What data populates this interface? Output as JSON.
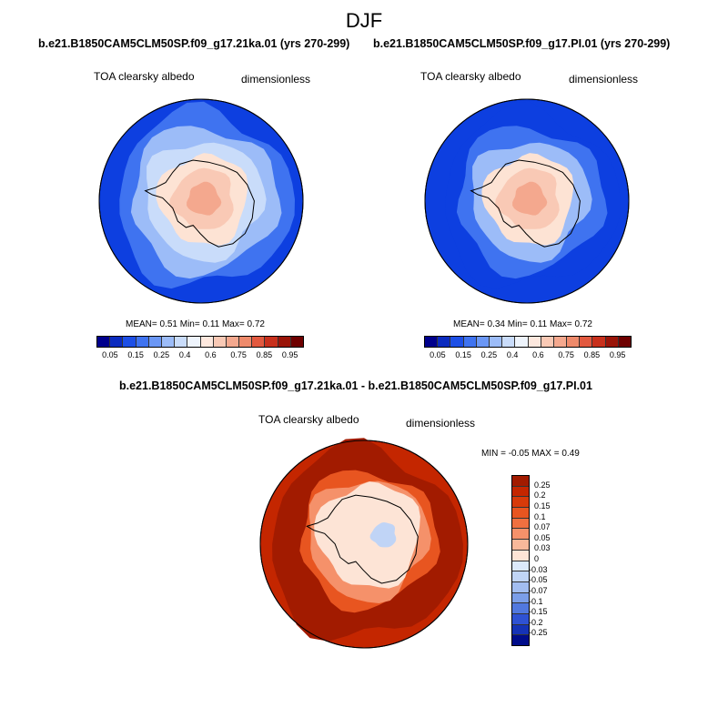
{
  "title": "DJF",
  "panels": [
    {
      "title": "b.e21.B1850CAM5CLM50SP.f09_g17.21ka.01 (yrs 270-299)",
      "variable": "TOA clearsky albedo",
      "units": "dimensionless",
      "stats": "MEAN=   0.51  Min=   0.11  Max=   0.72"
    },
    {
      "title": "b.e21.B1850CAM5CLM50SP.f09_g17.PI.01 (yrs 270-299)",
      "variable": "TOA clearsky albedo",
      "units": "dimensionless",
      "stats": "MEAN=   0.34  Min=   0.11  Max=   0.72"
    },
    {
      "title": "b.e21.B1850CAM5CLM50SP.f09_g17.21ka.01 - b.e21.B1850CAM5CLM50SP.f09_g17.PI.01",
      "variable": "TOA clearsky albedo",
      "units": "dimensionless",
      "stats": "MIN =  -0.05 MAX =   0.49"
    }
  ],
  "colorbar_top": {
    "labels": [
      "0.05",
      "0.15",
      "0.25",
      "0.4",
      "0.6",
      "0.75",
      "0.85",
      "0.95"
    ],
    "colors": [
      "#00008c",
      "#0b2bbf",
      "#1d4fe6",
      "#3f73f0",
      "#6b97f5",
      "#9cbcf8",
      "#c9dcfa",
      "#eef4fc",
      "#fde8de",
      "#f9c9b5",
      "#f4a88e",
      "#ee8a6b",
      "#e2593f",
      "#c8301c",
      "#9a1408",
      "#6e0000"
    ]
  },
  "colorbar_diff": {
    "labels": [
      "0.25",
      "0.2",
      "0.15",
      "0.1",
      "0.07",
      "0.05",
      "0.03",
      "0",
      "-0.03",
      "-0.05",
      "-0.07",
      "-0.1",
      "-0.15",
      "-0.2",
      "-0.25"
    ],
    "colors": [
      "#a21b00",
      "#c42600",
      "#d73a0a",
      "#e85520",
      "#f07040",
      "#f5916a",
      "#f9b89a",
      "#fde4d6",
      "#dce9fb",
      "#c0d4f6",
      "#a2bdf1",
      "#7b9ee9",
      "#5178df",
      "#2f52d3",
      "#1633b6",
      "#000c8a"
    ]
  },
  "map_colors": {
    "deep_blue": "#0d3fe0",
    "mid_blue": "#3f73f0",
    "light_blue": "#9cbcf8",
    "pale_blue": "#c9dcfa",
    "pale_salmon": "#fde3d4",
    "light_salmon": "#f9c9b5",
    "salmon": "#f4a88e",
    "diff_dark": "#a21b00",
    "diff_red": "#c42600",
    "diff_orange": "#e85520",
    "diff_light": "#f5916a",
    "diff_pale": "#fde4d6",
    "diff_blue": "#c0d4f6"
  }
}
